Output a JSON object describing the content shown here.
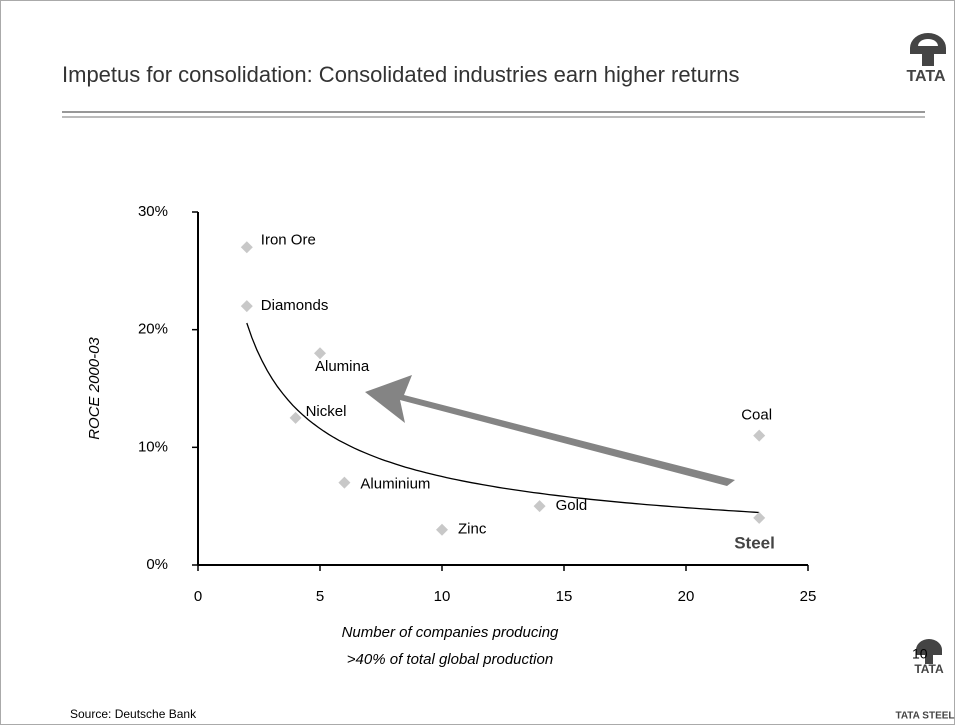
{
  "title": "Impetus for consolidation: Consolidated industries earn higher returns",
  "logo_top": "TATA",
  "logo_bottom": "TATA",
  "logo_bottom_sub": "TATA STEEL",
  "page_number": "10",
  "source": "Source: Deutsche Bank",
  "chart_data": {
    "type": "scatter",
    "ylabel": "ROCE 2000-03",
    "xlabel": [
      "Number of companies producing",
      ">40% of total global production"
    ],
    "point_labels": [
      "Iron Ore",
      "Diamonds",
      "Alumina",
      "Nickel",
      "Aluminium",
      "Zinc",
      "Gold",
      "Coal",
      "Steel"
    ],
    "x": [
      2,
      2,
      5,
      4,
      6,
      10,
      14,
      23,
      23
    ],
    "values": [
      27,
      22,
      18,
      12.5,
      7,
      3,
      5,
      11,
      4
    ],
    "color": "#c8c8c8",
    "trendline": "power",
    "xlim": [
      0,
      25
    ],
    "xticks": [
      0,
      5,
      10,
      15,
      20,
      25
    ],
    "ylim": [
      0,
      30
    ],
    "yticks": [
      {
        "value": 0,
        "label": "0%"
      },
      {
        "value": 10,
        "label": "10%"
      },
      {
        "value": 20,
        "label": "20%"
      },
      {
        "value": 30,
        "label": "30%"
      }
    ],
    "grid": false
  }
}
